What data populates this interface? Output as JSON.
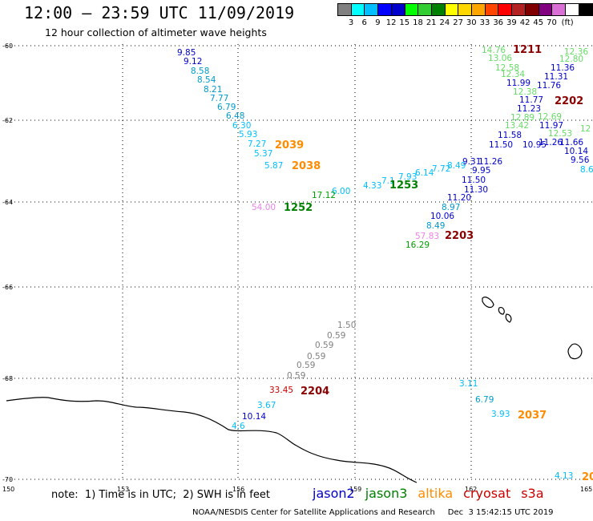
{
  "header": {
    "title": "12:00 – 23:59 UTC 11/09/2019",
    "subtitle": "12 hour collection of altimeter wave heights",
    "scale_colors": [
      "#808080",
      "#00ffff",
      "#00bfff",
      "#0000ff",
      "#0000cd",
      "#00ff00",
      "#32cd32",
      "#008000",
      "#ffff00",
      "#ffd700",
      "#ffa500",
      "#ff4500",
      "#ff0000",
      "#b22222",
      "#800000",
      "#800080",
      "#da70d6",
      "#ffffff",
      "#000000"
    ],
    "scale_labels": [
      "3",
      "6",
      "9",
      "12",
      "15",
      "18",
      "21",
      "24",
      "27",
      "30",
      "33",
      "36",
      "39",
      "42",
      "45",
      "70",
      "(ft)"
    ]
  },
  "axes": {
    "lat_labels": [
      "-60",
      "-62",
      "-64",
      "-66",
      "-68",
      "-70"
    ],
    "lon_labels": [
      "150",
      "153",
      "156",
      "159",
      "162",
      "165"
    ]
  },
  "colors": {
    "jason2": "#0000cc",
    "jason3": "#008000",
    "altika": "#ff8c00",
    "cryosat": "#cc0000",
    "s3a": "#cc0000",
    "gray": "#808080",
    "cyan": "#00bfff",
    "lightblue": "#009acd",
    "lightgreen": "#66dd66",
    "darkred": "#8b0000",
    "pink": "#ee82ee",
    "green": "#00a000"
  },
  "track_labels": [
    {
      "text": "2039",
      "color": "altika"
    },
    {
      "text": "2038",
      "color": "altika"
    },
    {
      "text": "1252",
      "color": "jason3"
    },
    {
      "text": "1253",
      "color": "jason3"
    },
    {
      "text": "2203",
      "color": "darkred"
    },
    {
      "text": "1211",
      "color": "darkred"
    },
    {
      "text": "2202",
      "color": "darkred"
    },
    {
      "text": "2204",
      "color": "darkred"
    },
    {
      "text": "2037",
      "color": "altika"
    },
    {
      "text": "20",
      "color": "altika"
    }
  ],
  "measurements": [
    {
      "text": "9.85",
      "color": "jason2"
    },
    {
      "text": "9.12",
      "color": "jason2"
    },
    {
      "text": "8.58",
      "color": "lightblue"
    },
    {
      "text": "8.54",
      "color": "lightblue"
    },
    {
      "text": "8.21",
      "color": "lightblue"
    },
    {
      "text": "7.77",
      "color": "lightblue"
    },
    {
      "text": "6.79",
      "color": "lightblue"
    },
    {
      "text": "6.48",
      "color": "lightblue"
    },
    {
      "text": "6.30",
      "color": "cyan"
    },
    {
      "text": "5.93",
      "color": "cyan"
    },
    {
      "text": "7.27",
      "color": "cyan"
    },
    {
      "text": "5.37",
      "color": "cyan"
    },
    {
      "text": "5.87",
      "color": "cyan"
    },
    {
      "text": "6.00",
      "color": "cyan"
    },
    {
      "text": "4.33",
      "color": "cyan"
    },
    {
      "text": "17.12",
      "color": "green"
    },
    {
      "text": "54.00",
      "color": "pink"
    },
    {
      "text": "7.1",
      "color": "cyan"
    },
    {
      "text": "7.93",
      "color": "cyan"
    },
    {
      "text": "6.14",
      "color": "cyan"
    },
    {
      "text": "7.72",
      "color": "cyan"
    },
    {
      "text": "8.49",
      "color": "cyan"
    },
    {
      "text": "9.31",
      "color": "jason2"
    },
    {
      "text": "11.26",
      "color": "jason2"
    },
    {
      "text": "9.95",
      "color": "jason2"
    },
    {
      "text": "11.50",
      "color": "jason2"
    },
    {
      "text": "11.30",
      "color": "jason2"
    },
    {
      "text": "11.20",
      "color": "jason2"
    },
    {
      "text": "8.97",
      "color": "lightblue"
    },
    {
      "text": "10.06",
      "color": "jason2"
    },
    {
      "text": "8.49",
      "color": "lightblue"
    },
    {
      "text": "57.83",
      "color": "pink"
    },
    {
      "text": "16.29",
      "color": "green"
    },
    {
      "text": "14.76",
      "color": "lightgreen"
    },
    {
      "text": "13.06",
      "color": "lightgreen"
    },
    {
      "text": "12.58",
      "color": "lightgreen"
    },
    {
      "text": "12.34",
      "color": "lightgreen"
    },
    {
      "text": "11.99",
      "color": "jason2"
    },
    {
      "text": "12.38",
      "color": "lightgreen"
    },
    {
      "text": "11.77",
      "color": "jason2"
    },
    {
      "text": "11.23",
      "color": "jason2"
    },
    {
      "text": "12.89",
      "color": "lightgreen"
    },
    {
      "text": "12.69",
      "color": "lightgreen"
    },
    {
      "text": "13.42",
      "color": "lightgreen"
    },
    {
      "text": "11.58",
      "color": "jason2"
    },
    {
      "text": "11.50",
      "color": "jason2"
    },
    {
      "text": "10.95",
      "color": "jason2"
    },
    {
      "text": "12.36",
      "color": "lightgreen"
    },
    {
      "text": "12.80",
      "color": "lightgreen"
    },
    {
      "text": "11.36",
      "color": "jason2"
    },
    {
      "text": "11.31",
      "color": "jason2"
    },
    {
      "text": "11.76",
      "color": "jason2"
    },
    {
      "text": "11.97",
      "color": "jason2"
    },
    {
      "text": "12.53",
      "color": "lightgreen"
    },
    {
      "text": "11.26",
      "color": "jason2"
    },
    {
      "text": "11.66",
      "color": "jason2"
    },
    {
      "text": "12",
      "color": "lightgreen"
    },
    {
      "text": "10.14",
      "color": "jason2"
    },
    {
      "text": "9.56",
      "color": "jason2"
    },
    {
      "text": "8.6",
      "color": "cyan"
    },
    {
      "text": "1.50",
      "color": "gray"
    },
    {
      "text": "0.59",
      "color": "gray"
    },
    {
      "text": "0.59",
      "color": "gray"
    },
    {
      "text": "0.59",
      "color": "gray"
    },
    {
      "text": "0.59",
      "color": "gray"
    },
    {
      "text": "0.59",
      "color": "gray"
    },
    {
      "text": "33.45",
      "color": "cryosat"
    },
    {
      "text": "3.67",
      "color": "cyan"
    },
    {
      "text": "10.14",
      "color": "jason2"
    },
    {
      "text": "4.6",
      "color": "cyan"
    },
    {
      "text": "3.11",
      "color": "cyan"
    },
    {
      "text": "6.79",
      "color": "lightblue"
    },
    {
      "text": "3.93",
      "color": "cyan"
    },
    {
      "text": "4.13",
      "color": "cyan"
    }
  ],
  "footer": {
    "note": "note:  1) Time is in UTC;  2) SWH is in feet",
    "legend": [
      {
        "text": "jason2",
        "color": "jason2"
      },
      {
        "text": "jason3",
        "color": "jason3"
      },
      {
        "text": "altika",
        "color": "altika"
      },
      {
        "text": "cryosat",
        "color": "cryosat"
      },
      {
        "text": "s3a",
        "color": "s3a"
      }
    ],
    "credit": "NOAA/NESDIS Center for Satellite Applications and Research     Dec  3 15:42:15 UTC 2019"
  }
}
